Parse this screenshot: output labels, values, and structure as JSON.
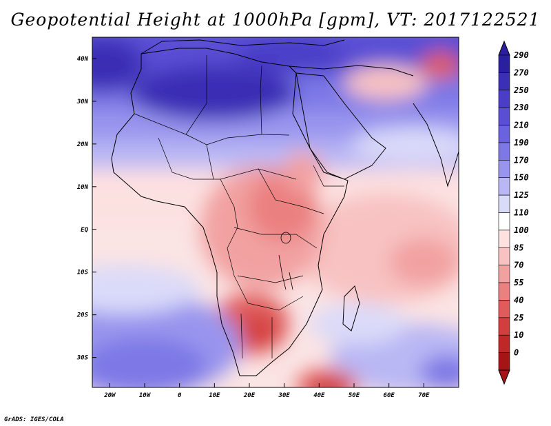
{
  "title": "Geopotential Height at 1000hPa [gpm], VT: 2017122521",
  "credit": "GrADS: IGES/COLA",
  "map": {
    "variable": "Geopotential Height",
    "level": "1000hPa",
    "units": "gpm",
    "valid_time": "2017122521",
    "lon_range": [
      -25,
      80
    ],
    "lat_range": [
      -37,
      45
    ],
    "lon_ticks": [
      {
        "value": -20,
        "label": "20W"
      },
      {
        "value": -10,
        "label": "10W"
      },
      {
        "value": 0,
        "label": "0"
      },
      {
        "value": 10,
        "label": "10E"
      },
      {
        "value": 20,
        "label": "20E"
      },
      {
        "value": 30,
        "label": "30E"
      },
      {
        "value": 40,
        "label": "40E"
      },
      {
        "value": 50,
        "label": "50E"
      },
      {
        "value": 60,
        "label": "60E"
      },
      {
        "value": 70,
        "label": "70E"
      }
    ],
    "lat_ticks": [
      {
        "value": 40,
        "label": "40N"
      },
      {
        "value": 30,
        "label": "30N"
      },
      {
        "value": 20,
        "label": "20N"
      },
      {
        "value": 10,
        "label": "10N"
      },
      {
        "value": 0,
        "label": "EQ"
      },
      {
        "value": -10,
        "label": "10S"
      },
      {
        "value": -20,
        "label": "20S"
      },
      {
        "value": -30,
        "label": "30S"
      }
    ],
    "features": [
      {
        "name": "high-north-africa",
        "level": 250,
        "lon": 15,
        "lat": 30
      },
      {
        "name": "high-atlantic-north",
        "level": 270,
        "lon": -22,
        "lat": 38
      },
      {
        "name": "low-southern-africa",
        "level": 55,
        "lon": 25,
        "lat": -21
      },
      {
        "name": "low-east-africa",
        "level": 85,
        "lon": 32,
        "lat": 0
      },
      {
        "name": "low-south-indian",
        "level": 40,
        "lon": 45,
        "lat": -36
      },
      {
        "name": "low-indian-ocean",
        "level": 85,
        "lon": 68,
        "lat": -8
      },
      {
        "name": "high-south-atlantic",
        "level": 190,
        "lon": -5,
        "lat": -30
      }
    ]
  },
  "colorbar": {
    "levels": [
      "290",
      "270",
      "250",
      "230",
      "210",
      "190",
      "170",
      "150",
      "125",
      "110",
      "100",
      "85",
      "70",
      "55",
      "40",
      "25",
      "10",
      "0"
    ],
    "colors": [
      "#2a1f9e",
      "#3a2fb5",
      "#4a3ec7",
      "#5a4fd4",
      "#6a62de",
      "#7d78e6",
      "#9995ee",
      "#b9b7f4",
      "#dadaf9",
      "#ffffff",
      "#fde0e0",
      "#f8c2c2",
      "#f2a1a1",
      "#eb8080",
      "#e05c5c",
      "#d23e3e",
      "#c02828",
      "#a51515"
    ]
  }
}
